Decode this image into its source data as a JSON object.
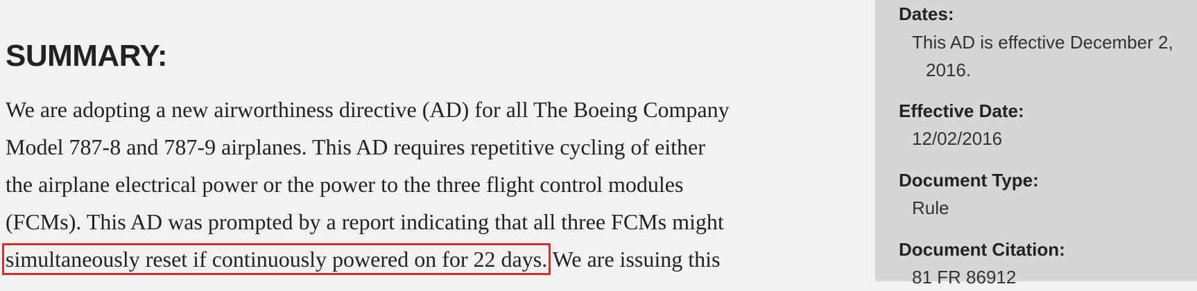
{
  "summary": {
    "heading": "SUMMARY:",
    "lines": [
      "We are adopting a new airworthiness directive (AD) for all The Boeing Company",
      "Model 787-8 and 787-9 airplanes. This AD requires repetitive cycling of either",
      "the airplane electrical power or the power to the three flight control modules",
      "(FCMs). This AD was prompted by a report indicating that all three FCMs might"
    ],
    "highlighted_text": "simultaneously reset if continuously powered on for 22 days.",
    "last_line_rest": " We are issuing this"
  },
  "sidebar": {
    "dates": {
      "label": "Dates:",
      "value_line1": "This AD is effective December 2,",
      "value_line2": "2016."
    },
    "effective_date": {
      "label": "Effective Date:",
      "value": "12/02/2016"
    },
    "document_type": {
      "label": "Document Type:",
      "value": "Rule"
    },
    "document_citation": {
      "label": "Document Citation:",
      "value": "81 FR 86912"
    }
  },
  "colors": {
    "main_background": "#f2f2f2",
    "sidebar_background": "#d6d6d6",
    "highlight_border": "#d32f2f",
    "text": "#222222"
  }
}
